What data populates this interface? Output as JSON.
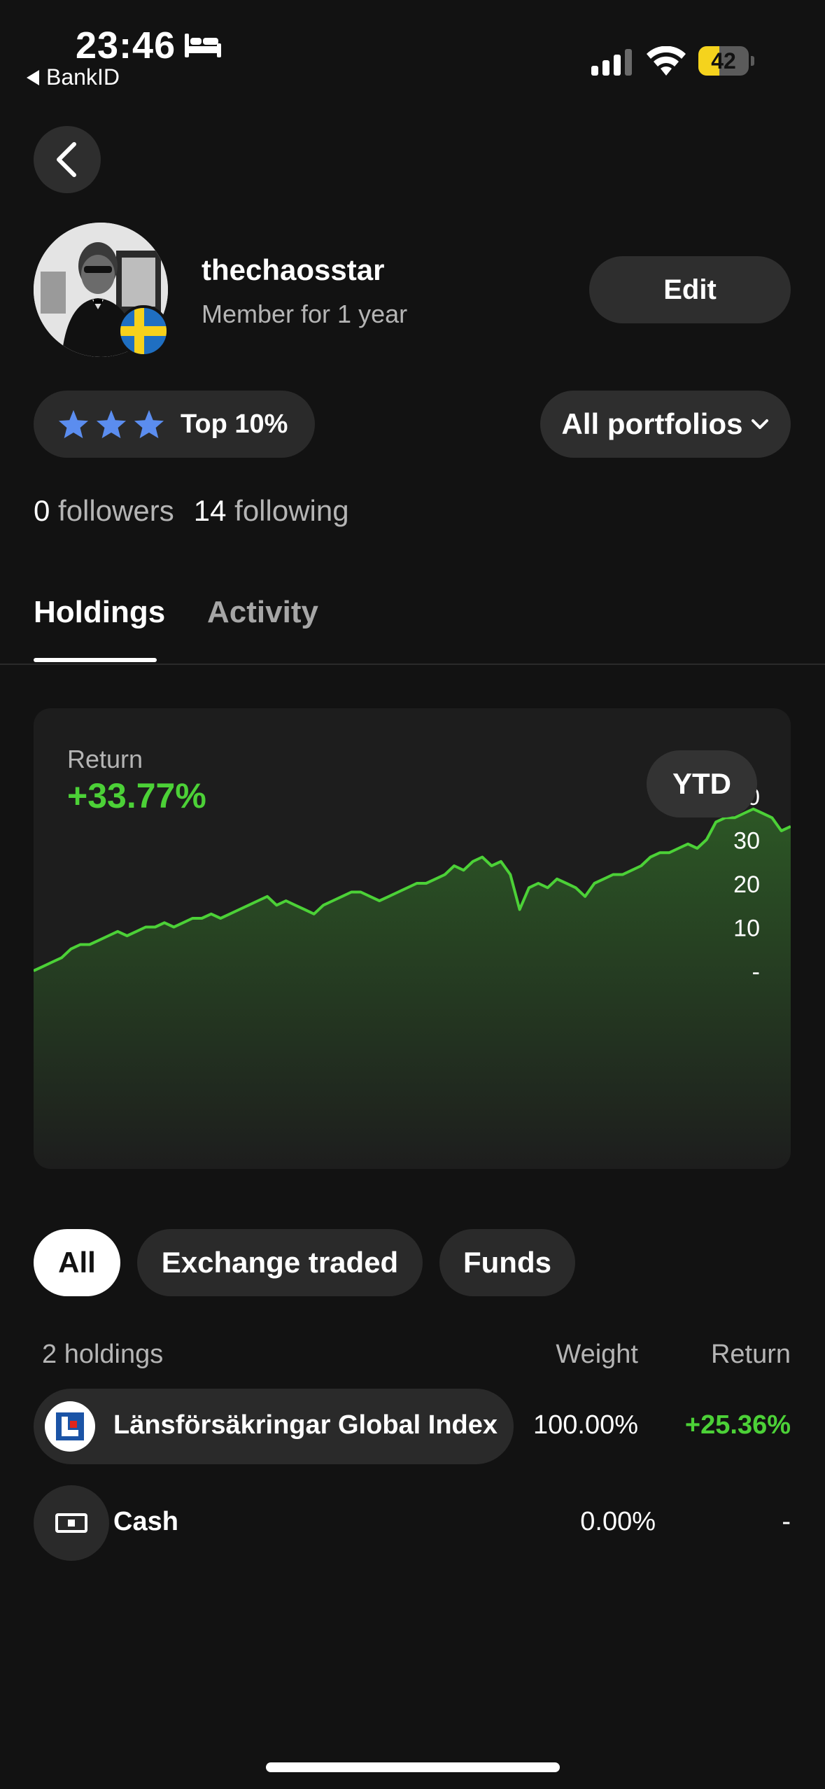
{
  "status_bar": {
    "time": "23:46",
    "back_app": "BankID",
    "battery": "42",
    "battery_level": 0.42
  },
  "profile": {
    "username": "thechaosstar",
    "member_since": "Member for 1 year",
    "edit_label": "Edit",
    "rank_label": "Top 10%",
    "rank_stars": 3,
    "portfolio_selector": "All portfolios",
    "followers_count": "0",
    "followers_label": "followers",
    "following_count": "14",
    "following_label": "following"
  },
  "tabs": [
    {
      "label": "Holdings",
      "active": true
    },
    {
      "label": "Activity",
      "active": false
    }
  ],
  "chart": {
    "return_label": "Return",
    "return_value": "+33.77%",
    "period_label": "YTD"
  },
  "chart_data": {
    "type": "area",
    "y_tick_labels": [
      "40",
      "30",
      "20",
      "10",
      "-"
    ],
    "y_ticks": [
      40,
      30,
      20,
      10,
      0
    ],
    "ylim": [
      0,
      40
    ],
    "grid": false,
    "line_color": "#4cd137",
    "values": [
      0,
      1,
      2,
      3,
      5,
      6,
      6,
      7,
      8,
      9,
      8,
      9,
      10,
      10,
      11,
      10,
      11,
      12,
      12,
      13,
      12,
      13,
      14,
      15,
      16,
      17,
      15,
      16,
      15,
      14,
      13,
      15,
      16,
      17,
      18,
      18,
      17,
      16,
      17,
      18,
      19,
      20,
      20,
      21,
      22,
      24,
      23,
      25,
      26,
      24,
      25,
      22,
      14,
      19,
      20,
      19,
      21,
      20,
      19,
      17,
      20,
      21,
      22,
      22,
      23,
      24,
      26,
      27,
      27,
      28,
      29,
      28,
      30,
      34,
      35,
      35,
      36,
      37,
      36,
      35,
      32,
      33
    ]
  },
  "filters": [
    {
      "label": "All",
      "active": true
    },
    {
      "label": "Exchange traded",
      "active": false
    },
    {
      "label": "Funds",
      "active": false
    }
  ],
  "holdings": {
    "count_label": "2 holdings",
    "weight_header": "Weight",
    "return_header": "Return",
    "rows": [
      {
        "name": "Länsförsäkringar Global Index",
        "weight": "100.00%",
        "return": "+25.36%",
        "icon": "lansforsakringar-logo-icon"
      },
      {
        "name": "Cash",
        "weight": "0.00%",
        "return": "-",
        "icon": "cash-icon"
      }
    ]
  },
  "colors": {
    "background": "#121212",
    "positive": "#4cd137",
    "star": "#5b8def",
    "pill": "#2a2a2a"
  }
}
